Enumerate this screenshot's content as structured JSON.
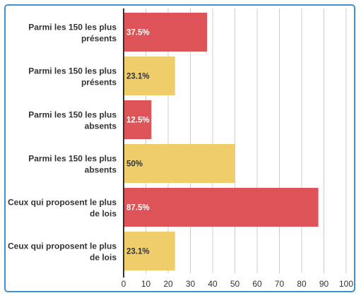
{
  "chart_data": {
    "type": "bar",
    "orientation": "horizontal",
    "title": "",
    "xlabel": "",
    "ylabel": "",
    "categories": [
      [
        "Parmi les 150 les plus",
        "présents"
      ],
      [
        "Parmi les 150 les plus",
        "présents"
      ],
      [
        "Parmi les 150 les plus",
        "absents"
      ],
      [
        "Parmi les 150 les plus",
        "absents"
      ],
      [
        "Ceux qui proposent le plus",
        "de lois"
      ],
      [
        "Ceux qui proposent le plus",
        "de lois"
      ]
    ],
    "values": [
      37.5,
      23.1,
      12.5,
      50,
      87.5,
      23.1
    ],
    "value_labels": [
      "37.5%",
      "23.1%",
      "12.5%",
      "50%",
      "87.5%",
      "23.1%"
    ],
    "bar_colors": [
      "#dd5357",
      "#efcd6a",
      "#dd5357",
      "#efcd6a",
      "#dd5357",
      "#efcd6a"
    ],
    "label_colors": [
      "#ffffff",
      "#333333",
      "#ffffff",
      "#333333",
      "#ffffff",
      "#333333"
    ],
    "xlim": [
      0,
      100
    ],
    "xticks": [
      0,
      10,
      20,
      30,
      40,
      50,
      60,
      70,
      80,
      90,
      100
    ],
    "grid": true,
    "legend": "none",
    "colors": {
      "grid": "#cccccc",
      "axis": "#333333",
      "frame": "#3d8fd6"
    }
  }
}
